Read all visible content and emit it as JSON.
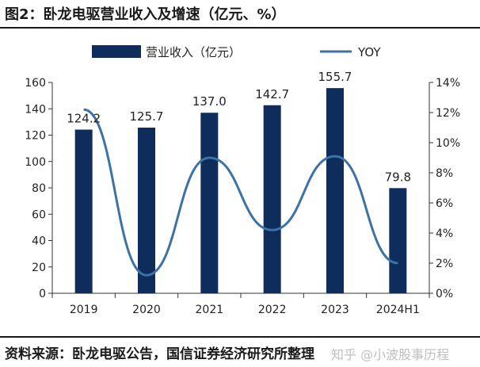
{
  "figure_title": "图2：卧龙电驱营业收入及增速（亿元、%）",
  "source_note": "资料来源：卧龙电驱公告，国信证券经济研究所整理",
  "watermark_text": "知乎 @小波股事历程",
  "chart_data": {
    "type": "bar",
    "categories": [
      "2019",
      "2020",
      "2021",
      "2022",
      "2023",
      "2024H1"
    ],
    "series": [
      {
        "name": "营业收入（亿元）",
        "type": "bar",
        "axis": "left",
        "color": "#0f2d5c",
        "values": [
          124.2,
          125.7,
          137.0,
          142.7,
          155.7,
          79.8
        ],
        "labels": [
          "124.2",
          "125.7",
          "137.0",
          "142.7",
          "155.7",
          "79.8"
        ]
      },
      {
        "name": "YOY",
        "type": "line",
        "axis": "right",
        "smooth": true,
        "color": "#3d72a6",
        "values": [
          12.2,
          1.2,
          9.0,
          4.2,
          9.1,
          2.0
        ]
      }
    ],
    "y_left": {
      "min": 0,
      "max": 160,
      "step": 20,
      "ticks": [
        "0",
        "20",
        "40",
        "60",
        "80",
        "100",
        "120",
        "140",
        "160"
      ]
    },
    "y_right": {
      "min": 0,
      "max": 14,
      "step": 2,
      "ticks": [
        "0%",
        "2%",
        "4%",
        "6%",
        "8%",
        "10%",
        "12%",
        "14%"
      ]
    },
    "legend": {
      "position": "top"
    },
    "grid": false
  }
}
